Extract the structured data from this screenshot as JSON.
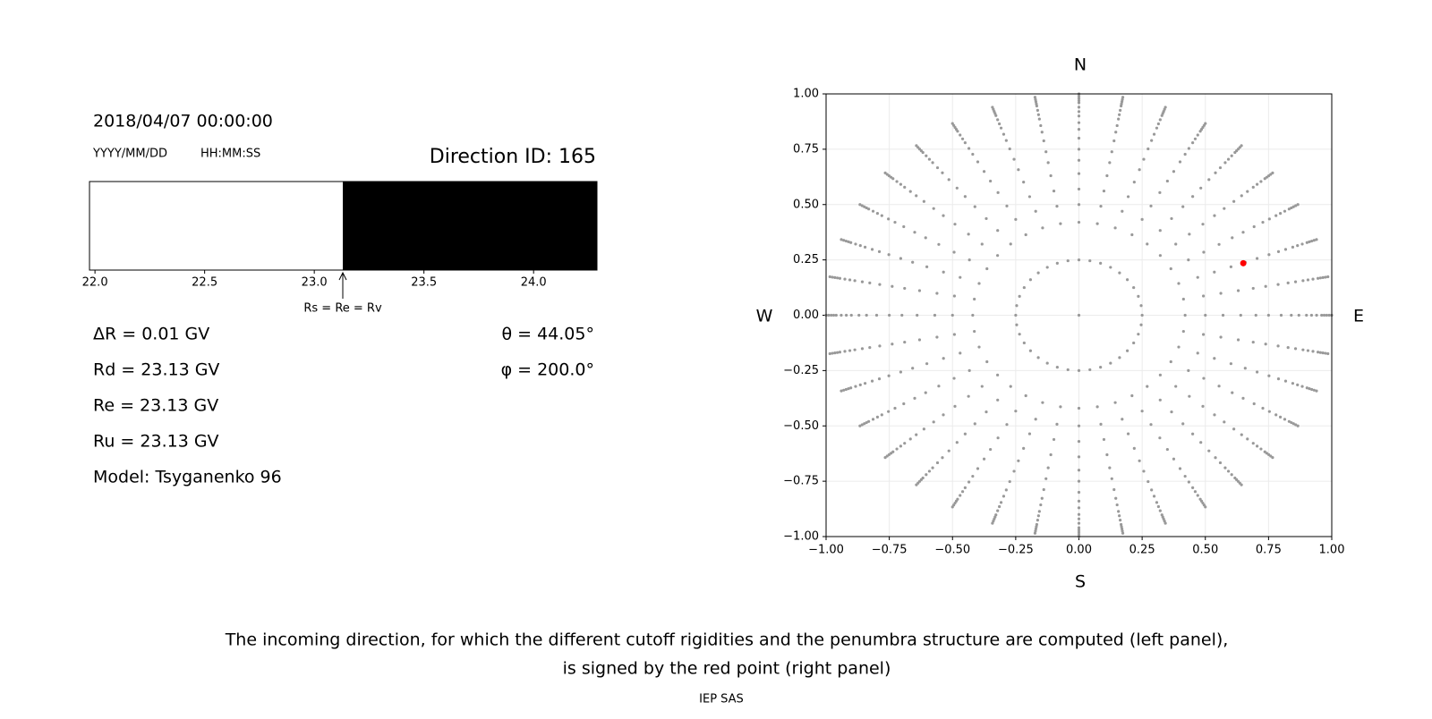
{
  "chart_data": [
    {
      "type": "penumbra",
      "title": "2018/04/07 00:00:00",
      "date_format": "YYYY/MM/DD",
      "time_format": "HH:MM:SS",
      "direction_label": "Direction ID: 165",
      "xlim": [
        21.975,
        24.289
      ],
      "xticks": [
        {
          "value": 22,
          "label": "22.0"
        },
        {
          "value": 22.5,
          "label": "22.5"
        },
        {
          "value": 23,
          "label": "23.0"
        },
        {
          "value": 23.5,
          "label": "23.5"
        },
        {
          "value": 24,
          "label": "24.0"
        }
      ],
      "cutoff": 23.13,
      "cutoff_label": "Rs = Re = Rv",
      "colors": [
        "#ffffff",
        "#000000"
      ],
      "info_left": [
        "ΔR = 0.01 GV",
        "Rd = 23.13 GV",
        "Re = 23.13 GV",
        "Ru = 23.13 GV",
        "Model: Tsyganenko 96"
      ],
      "info_right": [
        "θ = 44.05°",
        "φ = 200.0°"
      ]
    },
    {
      "type": "scatter",
      "north": "N",
      "south": "S",
      "west": "W",
      "east": "E",
      "xlim": [
        -1,
        1
      ],
      "ylim": [
        -1,
        1
      ],
      "xticks": [
        {
          "value": -1,
          "label": "−1.00"
        },
        {
          "value": -0.75,
          "label": "−0.75"
        },
        {
          "value": -0.5,
          "label": "−0.50"
        },
        {
          "value": -0.25,
          "label": "−0.25"
        },
        {
          "value": 0,
          "label": "0.00"
        },
        {
          "value": 0.25,
          "label": "0.25"
        },
        {
          "value": 0.5,
          "label": "0.50"
        },
        {
          "value": 0.75,
          "label": "0.75"
        },
        {
          "value": 1,
          "label": "1.00"
        }
      ],
      "yticks": [
        {
          "value": -1,
          "label": "−1.00"
        },
        {
          "value": -0.75,
          "label": "−0.75"
        },
        {
          "value": -0.5,
          "label": "−0.50"
        },
        {
          "value": -0.25,
          "label": "−0.25"
        },
        {
          "value": 0,
          "label": "0.00"
        },
        {
          "value": 0.25,
          "label": "0.25"
        },
        {
          "value": 0.5,
          "label": "0.50"
        },
        {
          "value": 0.75,
          "label": "0.75"
        },
        {
          "value": 1,
          "label": "1.00"
        }
      ],
      "grid": true,
      "color": "#999999",
      "grid_points": {
        "center": [
          0,
          0
        ],
        "azimuths": [
          0,
          10,
          20,
          30,
          40,
          50,
          60,
          70,
          80,
          90,
          100,
          110,
          120,
          130,
          140,
          150,
          160,
          170,
          180,
          190,
          200,
          210,
          220,
          230,
          240,
          250,
          260,
          270,
          280,
          290,
          300,
          310,
          320,
          330,
          340,
          350
        ],
        "radii": [
          0.25,
          0.42,
          0.5,
          0.57,
          0.64,
          0.7,
          0.75,
          0.8,
          0.84,
          0.87,
          0.9,
          0.92,
          0.94,
          0.96,
          0.97,
          0.98,
          0.99,
          1.0
        ]
      },
      "highlight": {
        "x": 0.65,
        "y": 0.235,
        "color": "#ff0000"
      }
    }
  ],
  "caption": [
    "The incoming direction, for which the different cutoff rigidities and the penumbra structure are computed (left panel),",
    "is signed by the red point (right panel)"
  ],
  "footer": "IEP SAS"
}
